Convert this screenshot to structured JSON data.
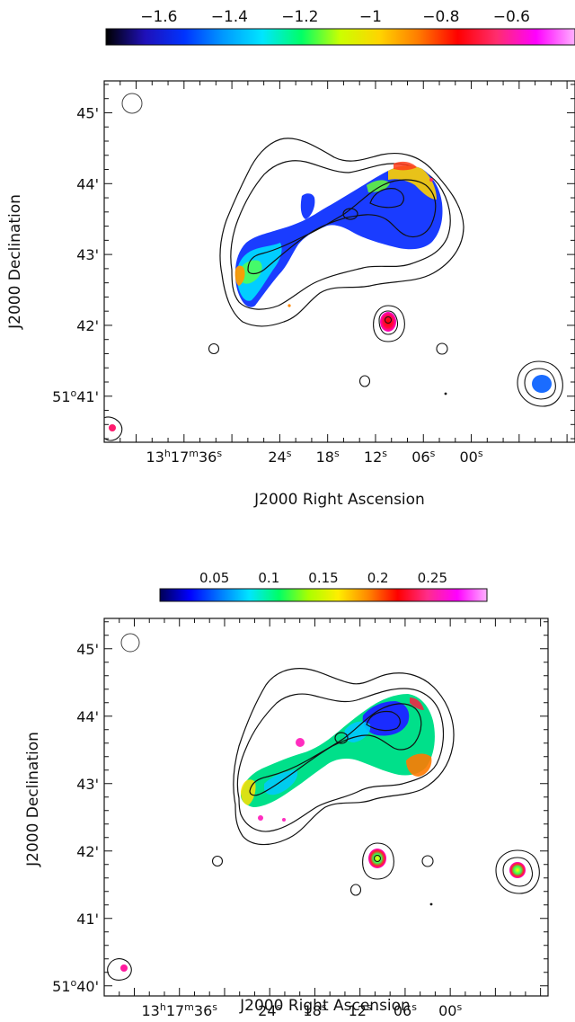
{
  "chart_data": [
    {
      "type": "heatmap",
      "colorbar": {
        "ticks": [
          "−1.6",
          "−1.4",
          "−1.2",
          "−1",
          "−0.8",
          "−0.6"
        ],
        "tick_values": [
          -1.6,
          -1.4,
          -1.2,
          -1.0,
          -0.8,
          -0.6
        ],
        "range": [
          -1.75,
          -0.42
        ],
        "colors": [
          "#000000",
          "#1f10b8",
          "#0033ff",
          "#0099ff",
          "#00e5ff",
          "#00ff66",
          "#ccff00",
          "#ffd400",
          "#ff7a00",
          "#ff0000",
          "#ff2d6e",
          "#ff00ff",
          "#ffb0ff"
        ]
      },
      "xlabel": "J2000 Right Ascension",
      "ylabel": "J2000 Declination",
      "x_ticks": [
        "13h17m36s",
        "24s",
        "18s",
        "12s",
        "06s",
        "00s"
      ],
      "x_tick_values_s": [
        36,
        24,
        18,
        12,
        6,
        0
      ],
      "xlim_s": [
        46,
        -13
      ],
      "y_ticks": [
        "51°41'",
        "42'",
        "43'",
        "44'",
        "45'"
      ],
      "y_tick_values_arcmin": [
        41,
        42,
        43,
        44,
        45
      ],
      "ylim_arcmin": [
        40.35,
        45.45
      ]
    },
    {
      "type": "heatmap",
      "colorbar": {
        "ticks": [
          "0.05",
          "0.1",
          "0.15",
          "0.2",
          "0.25"
        ],
        "tick_values": [
          0.05,
          0.1,
          0.15,
          0.2,
          0.25
        ],
        "range": [
          0.0,
          0.3
        ],
        "colors": [
          "#000055",
          "#0000ff",
          "#0077ff",
          "#00e5ff",
          "#00ff66",
          "#aaff00",
          "#ffee00",
          "#ff8800",
          "#ff0000",
          "#ff2d8a",
          "#ff00ff",
          "#ffb0ff"
        ]
      },
      "xlabel": "J2000 Right Ascension",
      "ylabel": "J2000 Declination",
      "x_ticks": [
        "13h17m36s",
        "24s",
        "18s",
        "12s",
        "06s",
        "00s"
      ],
      "x_tick_values_s": [
        36,
        24,
        18,
        12,
        6,
        0
      ],
      "xlim_s": [
        46,
        -13
      ],
      "y_ticks": [
        "51°40'",
        "41'",
        "42'",
        "43'",
        "44'",
        "45'"
      ],
      "y_tick_values_arcmin": [
        40,
        41,
        42,
        43,
        44,
        45
      ],
      "ylim_arcmin": [
        39.85,
        45.45
      ]
    }
  ]
}
